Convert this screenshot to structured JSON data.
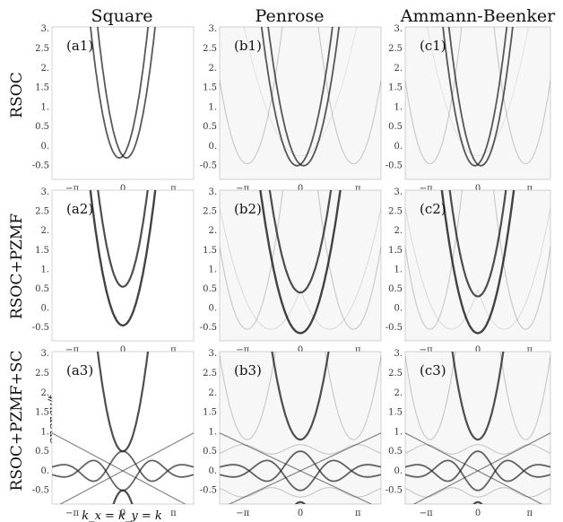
{
  "figure": {
    "column_titles": [
      "Square",
      "Penrose",
      "Ammann-Beenker"
    ],
    "row_labels": [
      "RSOC",
      "RSOC+PZMF",
      "RSOC+PZMF+SC"
    ],
    "y_tick_labels": [
      "3.",
      "2.5",
      "2.",
      "1.5",
      "1.",
      "0.5",
      "0.",
      "-0.5"
    ],
    "x_tick_labels": [
      "−π",
      "0",
      "π"
    ],
    "xlabel": "k_x = k_y = k",
    "ylabel": "energy/t",
    "panel_labels": [
      [
        "(a1)",
        "(b1)",
        "(c1)"
      ],
      [
        "(a2)",
        "(b2)",
        "(c2)"
      ],
      [
        "(a3)",
        "(b3)",
        "(c3)"
      ]
    ]
  },
  "chart_data": {
    "type": "scatter",
    "description": "3x3 grid of band-structure spectral density plots",
    "xlim": [
      -4.4,
      4.4
    ],
    "ylim": [
      -0.85,
      3.05
    ],
    "x_ticks": [
      -3.14159,
      0,
      3.14159
    ],
    "y_ticks": [
      3.0,
      2.5,
      2.0,
      1.5,
      1.0,
      0.5,
      0.0,
      -0.5
    ],
    "panels": [
      {
        "id": "a1",
        "lattice": "Square",
        "model": "RSOC",
        "band_minimum": -0.3,
        "rashba_split": 0.22
      },
      {
        "id": "b1",
        "lattice": "Penrose",
        "model": "RSOC",
        "band_minimum": -0.5,
        "rashba_split": 0.18
      },
      {
        "id": "c1",
        "lattice": "Ammann-Beenker",
        "model": "RSOC",
        "band_minimum": -0.5,
        "rashba_split": 0.18
      },
      {
        "id": "a2",
        "lattice": "Square",
        "model": "RSOC+PZMF",
        "band_minimum": -0.45,
        "gap_band_minimum": 0.55
      },
      {
        "id": "b2",
        "lattice": "Penrose",
        "model": "RSOC+PZMF",
        "band_minimum": -0.65,
        "gap_band_minimum": 0.4
      },
      {
        "id": "c2",
        "lattice": "Ammann-Beenker",
        "model": "RSOC+PZMF",
        "band_minimum": -0.65,
        "gap_band_minimum": 0.3
      },
      {
        "id": "a3",
        "lattice": "Square",
        "model": "RSOC+PZMF+SC",
        "band_minimum": 0.5,
        "crossing_energy": 0.0
      },
      {
        "id": "b3",
        "lattice": "Penrose",
        "model": "RSOC+PZMF+SC",
        "band_minimum": 0.8,
        "crossing_energy": 0.0
      },
      {
        "id": "c3",
        "lattice": "Ammann-Beenker",
        "model": "RSOC+PZMF+SC",
        "band_minimum": 0.8,
        "crossing_energy": 0.0
      }
    ]
  }
}
